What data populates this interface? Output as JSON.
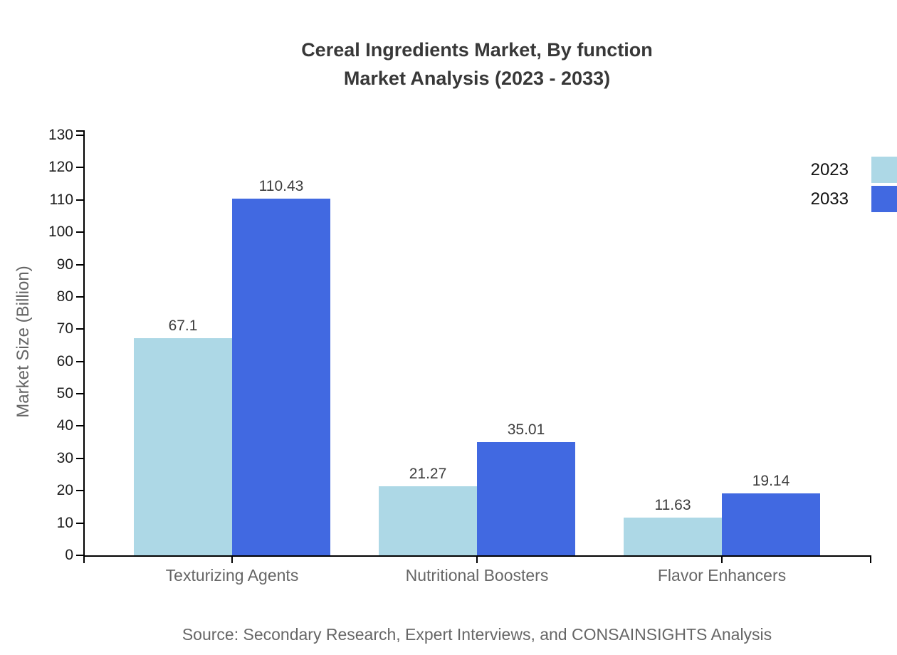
{
  "title": {
    "line1": "Cereal Ingredients Market, By function",
    "line2": "Market Analysis (2023 - 2033)"
  },
  "y_axis": {
    "label": "Market Size (Billion)"
  },
  "legend": {
    "items": [
      {
        "label": "2023",
        "color": "#ADD8E6"
      },
      {
        "label": "2033",
        "color": "#4169E1"
      }
    ]
  },
  "source": "Source: Secondary Research, Expert Interviews, and CONSAINSIGHTS Analysis",
  "chart_data": {
    "type": "bar",
    "title": "Cereal Ingredients Market, By function Market Analysis (2023 - 2033)",
    "categories": [
      "Texturizing Agents",
      "Nutritional Boosters",
      "Flavor Enhancers"
    ],
    "series": [
      {
        "name": "2023",
        "color": "#ADD8E6",
        "values": [
          67.1,
          21.27,
          11.63
        ],
        "data_labels": [
          "67.1",
          "21.27",
          "11.63"
        ]
      },
      {
        "name": "2033",
        "color": "#4169E1",
        "values": [
          110.43,
          35.01,
          19.14
        ],
        "data_labels": [
          "110.43",
          "35.01",
          "19.14"
        ]
      }
    ],
    "xlabel": "",
    "ylabel": "Market Size (Billion)",
    "ylim": [
      0,
      130
    ],
    "ytick_step": 10,
    "ytick_labels": [
      "0",
      "10",
      "20",
      "30",
      "40",
      "50",
      "60",
      "70",
      "80",
      "90",
      "100",
      "110",
      "120",
      "130"
    ],
    "grid": false,
    "legend_position": "top-right",
    "bar_value_labels_visible": true
  }
}
